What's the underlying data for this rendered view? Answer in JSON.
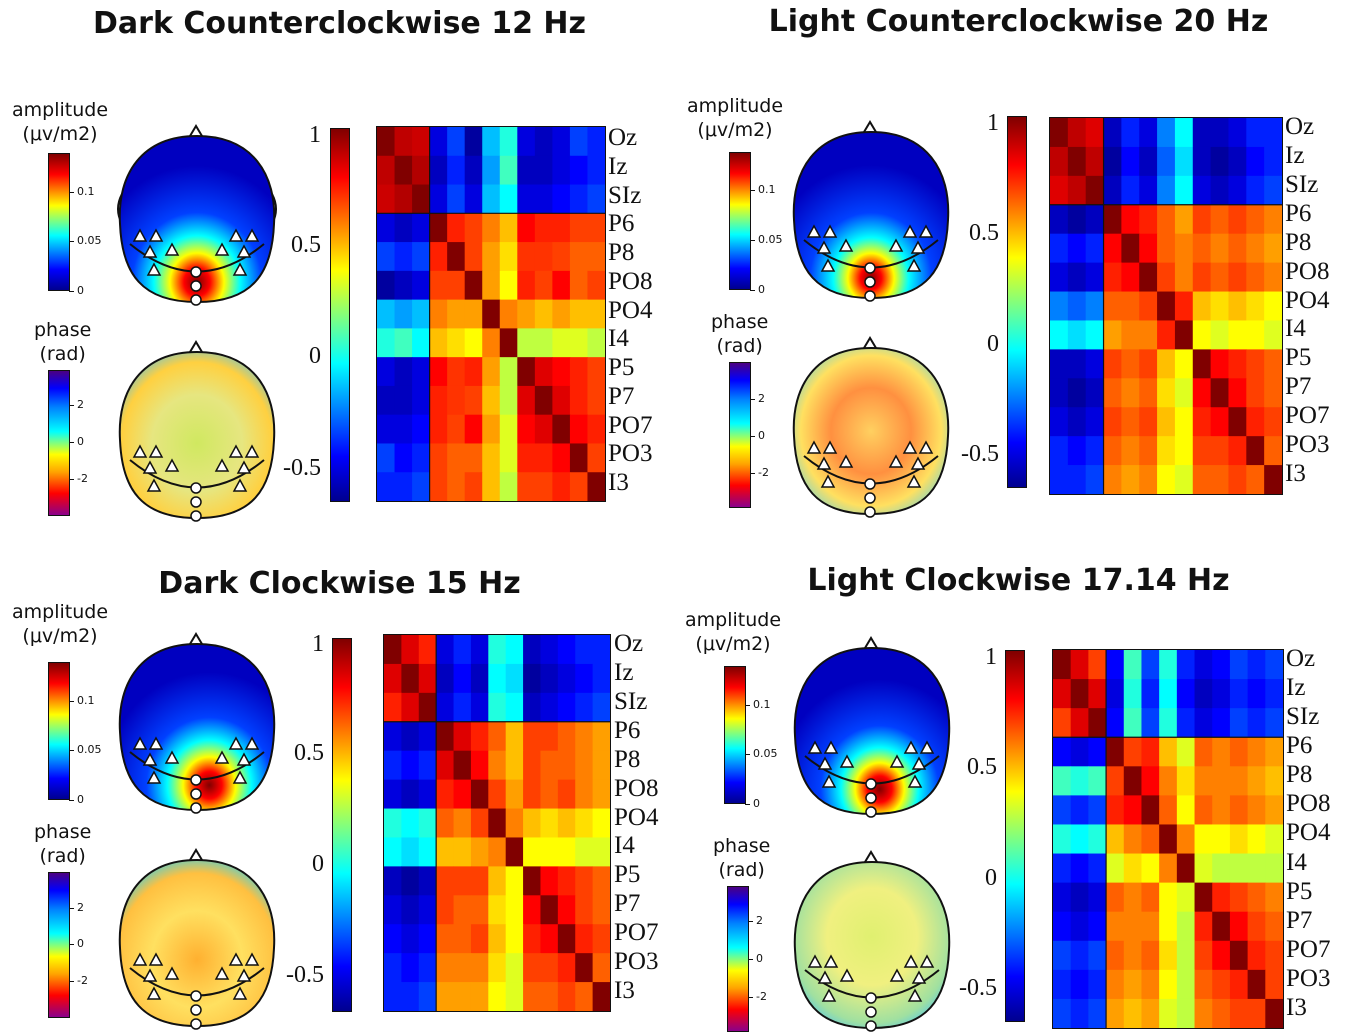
{
  "figure": {
    "channels": [
      "Oz",
      "Iz",
      "SIz",
      "P6",
      "P8",
      "PO8",
      "PO4",
      "I4",
      "P5",
      "P7",
      "PO7",
      "PO3",
      "I3"
    ],
    "amplitude_label": [
      "amplitude",
      "(μv/m2)"
    ],
    "phase_label": [
      "phase",
      "(rad)"
    ],
    "amplitude_ticks": [
      "0.1",
      "0.05",
      "0"
    ],
    "phase_ticks": [
      "2",
      "0",
      "-2"
    ],
    "correlation_ticks": [
      "1",
      "0.5",
      "0",
      "-0.5"
    ],
    "colors": {
      "jet_low": "#00008f",
      "jet_mid": "#ffff00",
      "jet_high": "#800000",
      "phase_low": "#800080",
      "phase_high": "#4b0082"
    }
  },
  "chart_data": [
    {
      "type": "heatmap",
      "title": "Dark Counterclockwise 12 Hz",
      "channels": [
        "Oz",
        "Iz",
        "SIz",
        "P6",
        "P8",
        "PO8",
        "PO4",
        "I4",
        "P5",
        "P7",
        "PO7",
        "PO3",
        "I3"
      ],
      "colorbar_range": [
        -0.6,
        1
      ],
      "values": [
        [
          1.0,
          0.9,
          0.88,
          -0.45,
          -0.3,
          -0.55,
          -0.1,
          0.05,
          -0.45,
          -0.5,
          -0.45,
          -0.3,
          -0.35
        ],
        [
          0.9,
          1.0,
          0.92,
          -0.5,
          -0.35,
          -0.5,
          -0.15,
          0.1,
          -0.5,
          -0.5,
          -0.45,
          -0.4,
          -0.35
        ],
        [
          0.88,
          0.92,
          1.0,
          -0.45,
          -0.3,
          -0.45,
          -0.1,
          0.0,
          -0.45,
          -0.45,
          -0.4,
          -0.35,
          -0.3
        ],
        [
          -0.45,
          -0.5,
          -0.45,
          1.0,
          0.75,
          0.7,
          0.6,
          0.5,
          0.8,
          0.75,
          0.75,
          0.7,
          0.7
        ],
        [
          -0.3,
          -0.35,
          -0.3,
          0.75,
          1.0,
          0.7,
          0.55,
          0.45,
          0.72,
          0.72,
          0.7,
          0.65,
          0.65
        ],
        [
          -0.55,
          -0.5,
          -0.45,
          0.7,
          0.7,
          1.0,
          0.55,
          0.4,
          0.75,
          0.7,
          0.8,
          0.65,
          0.7
        ],
        [
          -0.1,
          -0.15,
          -0.1,
          0.6,
          0.55,
          0.55,
          1.0,
          0.6,
          0.55,
          0.5,
          0.55,
          0.5,
          0.5
        ],
        [
          0.05,
          0.1,
          0.0,
          0.5,
          0.45,
          0.4,
          0.6,
          1.0,
          0.3,
          0.3,
          0.35,
          0.35,
          0.3
        ],
        [
          -0.45,
          -0.5,
          -0.45,
          0.8,
          0.72,
          0.75,
          0.55,
          0.3,
          1.0,
          0.85,
          0.8,
          0.75,
          0.7
        ],
        [
          -0.5,
          -0.5,
          -0.45,
          0.75,
          0.72,
          0.7,
          0.5,
          0.3,
          0.85,
          1.0,
          0.85,
          0.75,
          0.7
        ],
        [
          -0.45,
          -0.45,
          -0.4,
          0.75,
          0.7,
          0.8,
          0.55,
          0.35,
          0.8,
          0.85,
          1.0,
          0.8,
          0.75
        ],
        [
          -0.3,
          -0.4,
          -0.35,
          0.7,
          0.65,
          0.65,
          0.5,
          0.35,
          0.75,
          0.75,
          0.8,
          1.0,
          0.7
        ],
        [
          -0.35,
          -0.35,
          -0.3,
          0.7,
          0.65,
          0.7,
          0.5,
          0.3,
          0.7,
          0.7,
          0.75,
          0.7,
          1.0
        ]
      ]
    },
    {
      "type": "heatmap",
      "title": "Light Counterclockwise 20 Hz",
      "channels": [
        "Oz",
        "Iz",
        "SIz",
        "P6",
        "P8",
        "PO8",
        "PO4",
        "I4",
        "P5",
        "P7",
        "PO7",
        "PO3",
        "I3"
      ],
      "colorbar_range": [
        -0.6,
        1
      ],
      "values": [
        [
          1.0,
          0.9,
          0.85,
          -0.5,
          -0.35,
          -0.45,
          -0.2,
          0.0,
          -0.5,
          -0.5,
          -0.45,
          -0.35,
          -0.35
        ],
        [
          0.9,
          1.0,
          0.9,
          -0.55,
          -0.4,
          -0.5,
          -0.25,
          -0.05,
          -0.5,
          -0.55,
          -0.5,
          -0.4,
          -0.35
        ],
        [
          0.85,
          0.9,
          1.0,
          -0.5,
          -0.35,
          -0.45,
          -0.2,
          0.0,
          -0.45,
          -0.5,
          -0.45,
          -0.35,
          -0.3
        ],
        [
          -0.5,
          -0.55,
          -0.5,
          1.0,
          0.8,
          0.75,
          0.65,
          0.55,
          0.7,
          0.65,
          0.7,
          0.65,
          0.6
        ],
        [
          -0.35,
          -0.4,
          -0.35,
          0.8,
          1.0,
          0.8,
          0.65,
          0.6,
          0.65,
          0.6,
          0.65,
          0.6,
          0.55
        ],
        [
          -0.45,
          -0.5,
          -0.45,
          0.75,
          0.8,
          1.0,
          0.7,
          0.6,
          0.7,
          0.65,
          0.7,
          0.65,
          0.6
        ],
        [
          -0.2,
          -0.25,
          -0.2,
          0.65,
          0.65,
          0.7,
          1.0,
          0.75,
          0.5,
          0.45,
          0.5,
          0.45,
          0.4
        ],
        [
          0.0,
          -0.05,
          0.0,
          0.55,
          0.6,
          0.6,
          0.75,
          1.0,
          0.4,
          0.35,
          0.4,
          0.4,
          0.35
        ],
        [
          -0.5,
          -0.5,
          -0.45,
          0.7,
          0.65,
          0.7,
          0.5,
          0.4,
          1.0,
          0.8,
          0.75,
          0.7,
          0.65
        ],
        [
          -0.5,
          -0.55,
          -0.5,
          0.65,
          0.6,
          0.65,
          0.45,
          0.35,
          0.8,
          1.0,
          0.8,
          0.7,
          0.65
        ],
        [
          -0.45,
          -0.5,
          -0.45,
          0.7,
          0.65,
          0.7,
          0.5,
          0.4,
          0.75,
          0.8,
          1.0,
          0.75,
          0.7
        ],
        [
          -0.35,
          -0.4,
          -0.35,
          0.65,
          0.6,
          0.65,
          0.45,
          0.4,
          0.7,
          0.7,
          0.75,
          1.0,
          0.65
        ],
        [
          -0.35,
          -0.35,
          -0.3,
          0.6,
          0.55,
          0.6,
          0.4,
          0.35,
          0.65,
          0.65,
          0.7,
          0.65,
          1.0
        ]
      ]
    },
    {
      "type": "heatmap",
      "title": "Dark Clockwise 15 Hz",
      "channels": [
        "Oz",
        "Iz",
        "SIz",
        "P6",
        "P8",
        "PO8",
        "PO4",
        "I4",
        "P5",
        "P7",
        "PO7",
        "PO3",
        "I3"
      ],
      "colorbar_range": [
        -0.6,
        1
      ],
      "values": [
        [
          1.0,
          0.85,
          0.75,
          -0.45,
          -0.35,
          -0.45,
          0.05,
          0.0,
          -0.5,
          -0.45,
          -0.4,
          -0.35,
          -0.35
        ],
        [
          0.85,
          1.0,
          0.85,
          -0.5,
          -0.4,
          -0.5,
          0.0,
          -0.05,
          -0.55,
          -0.5,
          -0.45,
          -0.4,
          -0.35
        ],
        [
          0.75,
          0.85,
          1.0,
          -0.45,
          -0.35,
          -0.45,
          0.05,
          0.0,
          -0.5,
          -0.45,
          -0.4,
          -0.35,
          -0.3
        ],
        [
          -0.45,
          -0.5,
          -0.45,
          1.0,
          0.85,
          0.75,
          0.65,
          0.5,
          0.7,
          0.7,
          0.65,
          0.6,
          0.55
        ],
        [
          -0.35,
          -0.4,
          -0.35,
          0.85,
          1.0,
          0.8,
          0.6,
          0.5,
          0.7,
          0.65,
          0.65,
          0.6,
          0.55
        ],
        [
          -0.45,
          -0.5,
          -0.45,
          0.75,
          0.8,
          1.0,
          0.7,
          0.55,
          0.7,
          0.65,
          0.7,
          0.6,
          0.55
        ],
        [
          0.05,
          0.0,
          0.05,
          0.65,
          0.6,
          0.7,
          1.0,
          0.6,
          0.5,
          0.45,
          0.5,
          0.45,
          0.4
        ],
        [
          0.0,
          -0.05,
          0.0,
          0.5,
          0.5,
          0.55,
          0.6,
          1.0,
          0.4,
          0.4,
          0.4,
          0.35,
          0.35
        ],
        [
          -0.5,
          -0.55,
          -0.5,
          0.7,
          0.7,
          0.7,
          0.5,
          0.4,
          1.0,
          0.8,
          0.75,
          0.7,
          0.65
        ],
        [
          -0.45,
          -0.5,
          -0.45,
          0.7,
          0.65,
          0.65,
          0.45,
          0.4,
          0.8,
          1.0,
          0.8,
          0.7,
          0.65
        ],
        [
          -0.4,
          -0.45,
          -0.4,
          0.65,
          0.65,
          0.7,
          0.5,
          0.4,
          0.75,
          0.8,
          1.0,
          0.75,
          0.7
        ],
        [
          -0.35,
          -0.4,
          -0.35,
          0.6,
          0.6,
          0.6,
          0.45,
          0.35,
          0.7,
          0.7,
          0.75,
          1.0,
          0.65
        ],
        [
          -0.35,
          -0.35,
          -0.3,
          0.55,
          0.55,
          0.55,
          0.4,
          0.35,
          0.65,
          0.65,
          0.7,
          0.65,
          1.0
        ]
      ]
    },
    {
      "type": "heatmap",
      "title": "Light Clockwise 17.14 Hz",
      "channels": [
        "Oz",
        "Iz",
        "SIz",
        "P6",
        "P8",
        "PO8",
        "PO4",
        "I4",
        "P5",
        "P7",
        "PO7",
        "PO3",
        "I3"
      ],
      "colorbar_range": [
        -0.6,
        1
      ],
      "values": [
        [
          1.0,
          0.85,
          0.7,
          -0.4,
          0.1,
          -0.3,
          0.05,
          -0.35,
          -0.45,
          -0.4,
          -0.3,
          -0.35,
          -0.3
        ],
        [
          0.85,
          1.0,
          0.85,
          -0.45,
          0.05,
          -0.35,
          0.0,
          -0.4,
          -0.5,
          -0.45,
          -0.35,
          -0.4,
          -0.35
        ],
        [
          0.7,
          0.85,
          1.0,
          -0.4,
          0.1,
          -0.3,
          0.05,
          -0.35,
          -0.45,
          -0.4,
          -0.3,
          -0.35,
          -0.3
        ],
        [
          -0.4,
          -0.45,
          -0.4,
          1.0,
          0.7,
          0.75,
          0.5,
          0.35,
          0.65,
          0.6,
          0.65,
          0.6,
          0.55
        ],
        [
          0.1,
          0.05,
          0.1,
          0.7,
          1.0,
          0.8,
          0.6,
          0.45,
          0.6,
          0.6,
          0.6,
          0.55,
          0.5
        ],
        [
          -0.3,
          -0.35,
          -0.3,
          0.75,
          0.8,
          1.0,
          0.65,
          0.4,
          0.65,
          0.6,
          0.65,
          0.6,
          0.55
        ],
        [
          0.05,
          0.0,
          0.05,
          0.5,
          0.6,
          0.65,
          1.0,
          0.6,
          0.4,
          0.4,
          0.45,
          0.4,
          0.35
        ],
        [
          -0.35,
          -0.4,
          -0.35,
          0.35,
          0.45,
          0.4,
          0.6,
          1.0,
          0.35,
          0.3,
          0.3,
          0.3,
          0.3
        ],
        [
          -0.45,
          -0.5,
          -0.45,
          0.65,
          0.6,
          0.65,
          0.4,
          0.35,
          1.0,
          0.75,
          0.7,
          0.65,
          0.6
        ],
        [
          -0.4,
          -0.45,
          -0.4,
          0.6,
          0.6,
          0.6,
          0.4,
          0.3,
          0.75,
          1.0,
          0.8,
          0.7,
          0.65
        ],
        [
          -0.3,
          -0.35,
          -0.3,
          0.65,
          0.6,
          0.65,
          0.45,
          0.3,
          0.7,
          0.8,
          1.0,
          0.75,
          0.7
        ],
        [
          -0.35,
          -0.4,
          -0.35,
          0.6,
          0.55,
          0.6,
          0.4,
          0.3,
          0.65,
          0.7,
          0.75,
          1.0,
          0.7
        ],
        [
          -0.3,
          -0.35,
          -0.3,
          0.55,
          0.5,
          0.55,
          0.35,
          0.3,
          0.6,
          0.65,
          0.7,
          0.7,
          1.0
        ]
      ]
    }
  ]
}
